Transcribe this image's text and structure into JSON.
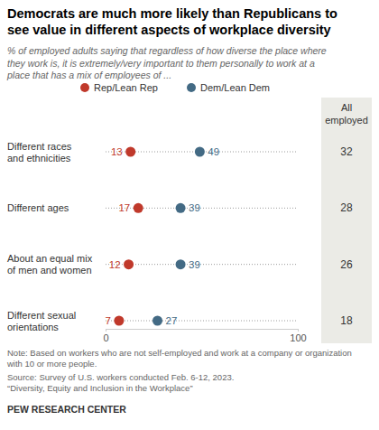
{
  "chart_data": {
    "type": "dot",
    "orientation": "horizontal",
    "title": "Democrats are much more likely than Republicans to\nsee value in different aspects of workplace diversity",
    "subtitle": "% of employed adults saying that regardless of how diverse the place where\nthey work is, it is extremely/very important to them personally to work at a\nplace that has a mix of employees of ...",
    "categories": [
      "Different races\nand ethnicities",
      "Different ages",
      "About an equal mix\nof men and women",
      "Different sexual\norientations"
    ],
    "series": [
      {
        "name": "Rep/Lean Rep",
        "color": "#c0392b",
        "values": [
          13,
          17,
          12,
          7
        ]
      },
      {
        "name": "Dem/Lean Dem",
        "color": "#436a84",
        "values": [
          49,
          39,
          39,
          27
        ]
      }
    ],
    "all_employed": {
      "name": "All\nemployed",
      "values": [
        32,
        28,
        26,
        18
      ]
    },
    "xlim": [
      0,
      100
    ],
    "xticks": [
      0,
      100
    ],
    "data_labels": true,
    "legend": "top",
    "note": "Note: Based on workers who are not self-employed and work at a company or organization\nwith 10 or more people.",
    "source": "Source: Survey of U.S. workers conducted Feb. 6-12, 2023.\n“Diversity, Equity and Inclusion in the Workplace”",
    "credit": "PEW RESEARCH CENTER"
  }
}
